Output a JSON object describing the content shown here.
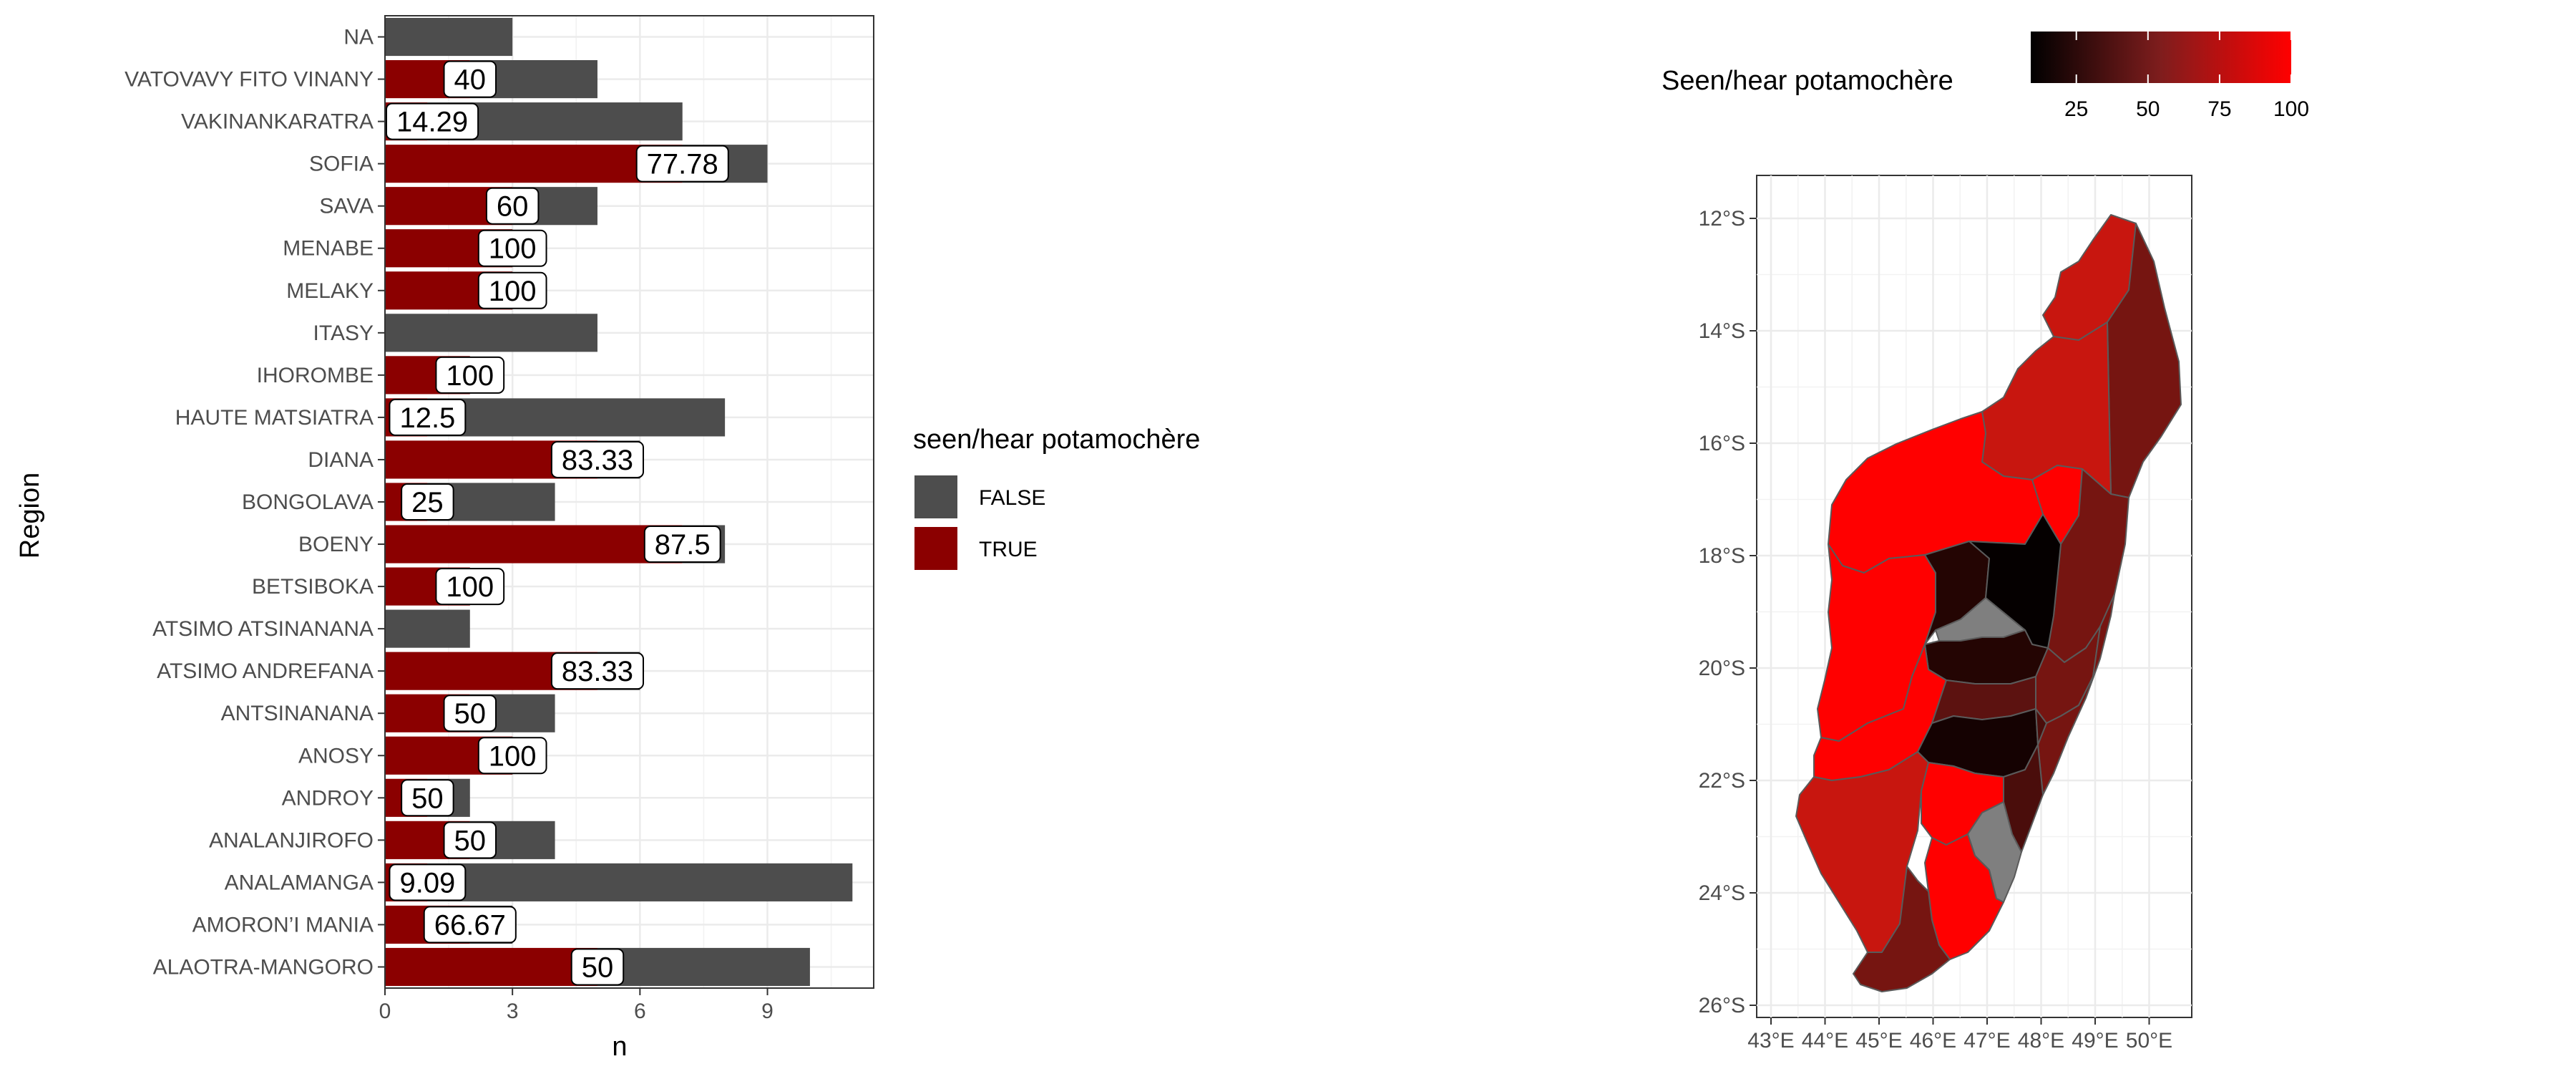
{
  "chart_data": [
    {
      "type": "bar",
      "orientation": "horizontal",
      "position": "stack",
      "xlabel": "n",
      "ylabel": "Region",
      "xlim": [
        0,
        11.5
      ],
      "x_ticks": [
        0,
        3,
        6,
        9
      ],
      "grid": true,
      "categories": [
        "NA",
        "VATOVAVY FITO VINANY",
        "VAKINANKARATRA",
        "SOFIA",
        "SAVA",
        "MENABE",
        "MELAKY",
        "ITASY",
        "IHOROMBE",
        "HAUTE MATSIATRA",
        "DIANA",
        "BONGOLAVA",
        "BOENY",
        "BETSIBOKA",
        "ATSIMO ATSINANANA",
        "ATSIMO ANDREFANA",
        "ANTSINANANA",
        "ANOSY",
        "ANDROY",
        "ANALANJIROFO",
        "ANALAMANGA",
        "AMORON’I MANIA",
        "ALAOTRA-MANGORO"
      ],
      "series": [
        {
          "name": "FALSE",
          "color": "#4d4d4d",
          "values": [
            3,
            3,
            6,
            2,
            2,
            0,
            0,
            5,
            0,
            7,
            1,
            3,
            1,
            0,
            2,
            1,
            2,
            0,
            1,
            2,
            10,
            1,
            5
          ]
        },
        {
          "name": "TRUE",
          "color": "#8b0000",
          "values": [
            0,
            2,
            1,
            7,
            3,
            3,
            3,
            0,
            2,
            1,
            5,
            1,
            7,
            2,
            0,
            5,
            2,
            3,
            1,
            2,
            1,
            2,
            5
          ]
        }
      ],
      "data_labels": [
        "",
        "40",
        "14.29",
        "77.78",
        "60",
        "100",
        "100",
        "",
        "100",
        "12.5",
        "83.33",
        "25",
        "87.5",
        "100",
        "",
        "83.33",
        "50",
        "100",
        "50",
        "50",
        "9.09",
        "66.67",
        "50"
      ],
      "legend": {
        "title": "seen/hear potamochère",
        "position": "right",
        "entries": [
          "FALSE",
          "TRUE"
        ]
      }
    },
    {
      "type": "choropleth",
      "legend": {
        "title": "Seen/hear potamochère",
        "position": "top",
        "ticks": [
          "25",
          "50",
          "75",
          "100"
        ],
        "range": [
          9.09,
          100
        ],
        "colors": [
          "#000000",
          "#ff0000"
        ]
      },
      "x_ticks": [
        "43°E",
        "44°E",
        "45°E",
        "46°E",
        "47°E",
        "48°E",
        "49°E",
        "50°E"
      ],
      "y_ticks": [
        "12°S",
        "14°S",
        "16°S",
        "18°S",
        "20°S",
        "22°S",
        "24°S",
        "26°S"
      ],
      "na_color": "#7f7f7f"
    }
  ]
}
